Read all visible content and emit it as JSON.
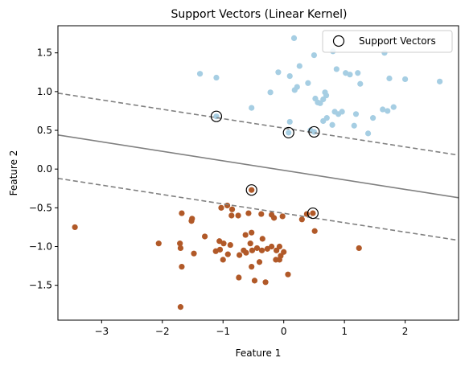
{
  "chart_data": {
    "type": "scatter",
    "title": "Support Vectors (Linear Kernel)",
    "xlabel": "Feature 1",
    "ylabel": "Feature 2",
    "xlim": [
      -3.72,
      2.88
    ],
    "ylim": [
      -1.95,
      1.85
    ],
    "xticks": [
      {
        "value": -3,
        "label": "−3"
      },
      {
        "value": -2,
        "label": "−2"
      },
      {
        "value": -1,
        "label": "−1"
      },
      {
        "value": 0,
        "label": "0"
      },
      {
        "value": 1,
        "label": "1"
      },
      {
        "value": 2,
        "label": "2"
      }
    ],
    "yticks": [
      {
        "value": 1.5,
        "label": "1.5"
      },
      {
        "value": 1.0,
        "label": "1.0"
      },
      {
        "value": 0.5,
        "label": "0.5"
      },
      {
        "value": 0.0,
        "label": "0.0"
      },
      {
        "value": -0.5,
        "label": "−0.5"
      },
      {
        "value": -1.0,
        "label": "−1.0"
      },
      {
        "value": -1.5,
        "label": "−1.5"
      }
    ],
    "grid": false,
    "legend": {
      "position": "top-right",
      "entries": [
        "Support Vectors"
      ]
    },
    "classes": [
      {
        "color": "#a6cee3",
        "points": [
          [
            0.17,
            1.69
          ],
          [
            -1.38,
            1.23
          ],
          [
            -1.11,
            1.18
          ],
          [
            -0.09,
            1.25
          ],
          [
            0.1,
            1.2
          ],
          [
            0.26,
            1.33
          ],
          [
            0.5,
            1.47
          ],
          [
            0.81,
            1.52
          ],
          [
            0.87,
            1.29
          ],
          [
            1.02,
            1.24
          ],
          [
            1.09,
            1.22
          ],
          [
            1.22,
            1.24
          ],
          [
            1.66,
            1.5
          ],
          [
            1.74,
            1.17
          ],
          [
            2.0,
            1.16
          ],
          [
            2.57,
            1.13
          ],
          [
            0.4,
            1.11
          ],
          [
            0.22,
            1.06
          ],
          [
            0.18,
            1.02
          ],
          [
            -0.22,
            0.99
          ],
          [
            0.68,
            0.99
          ],
          [
            1.26,
            1.1
          ],
          [
            0.7,
            0.95
          ],
          [
            0.52,
            0.91
          ],
          [
            0.65,
            0.9
          ],
          [
            0.6,
            0.85
          ],
          [
            0.56,
            0.86
          ],
          [
            -0.53,
            0.79
          ],
          [
            1.81,
            0.8
          ],
          [
            1.63,
            0.77
          ],
          [
            1.71,
            0.75
          ],
          [
            0.84,
            0.74
          ],
          [
            0.96,
            0.74
          ],
          [
            0.9,
            0.71
          ],
          [
            1.19,
            0.71
          ],
          [
            1.47,
            0.66
          ],
          [
            0.71,
            0.66
          ],
          [
            0.65,
            0.62
          ],
          [
            0.1,
            0.61
          ],
          [
            1.16,
            0.56
          ],
          [
            0.8,
            0.57
          ],
          [
            1.39,
            0.46
          ],
          [
            0.44,
            0.5
          ],
          [
            -1.11,
            0.68
          ],
          [
            0.08,
            0.47
          ],
          [
            0.5,
            0.48
          ]
        ]
      },
      {
        "color": "#b15928",
        "points": [
          [
            -0.53,
            -0.27
          ],
          [
            0.48,
            -0.57
          ],
          [
            -0.93,
            -0.47
          ],
          [
            -1.03,
            -0.5
          ],
          [
            -0.85,
            -0.52
          ],
          [
            -1.68,
            -0.57
          ],
          [
            -0.58,
            -0.57
          ],
          [
            -0.75,
            -0.6
          ],
          [
            -0.86,
            -0.6
          ],
          [
            -1.51,
            -0.64
          ],
          [
            -1.52,
            -0.67
          ],
          [
            -0.37,
            -0.58
          ],
          [
            -0.2,
            -0.59
          ],
          [
            -0.16,
            -0.63
          ],
          [
            -0.02,
            -0.61
          ],
          [
            0.3,
            -0.65
          ],
          [
            0.38,
            -0.58
          ],
          [
            -3.44,
            -0.75
          ],
          [
            -0.53,
            -0.82
          ],
          [
            -0.63,
            -0.85
          ],
          [
            0.51,
            -0.8
          ],
          [
            -1.06,
            -0.93
          ],
          [
            -0.35,
            -0.9
          ],
          [
            -1.3,
            -0.87
          ],
          [
            -2.06,
            -0.96
          ],
          [
            -1.71,
            -0.96
          ],
          [
            -1.7,
            -1.02
          ],
          [
            -0.99,
            -0.96
          ],
          [
            -0.88,
            -0.98
          ],
          [
            -0.55,
            -0.96
          ],
          [
            -0.44,
            -1.02
          ],
          [
            -0.2,
            -1.0
          ],
          [
            -0.07,
            -1.0
          ],
          [
            -0.12,
            -1.05
          ],
          [
            -1.48,
            -1.09
          ],
          [
            -1.12,
            -1.06
          ],
          [
            -1.05,
            -1.04
          ],
          [
            -0.92,
            -1.1
          ],
          [
            -0.66,
            -1.05
          ],
          [
            -0.52,
            -1.05
          ],
          [
            -0.36,
            -1.05
          ],
          [
            -0.27,
            -1.03
          ],
          [
            0.0,
            -1.07
          ],
          [
            -0.05,
            -1.12
          ],
          [
            -0.13,
            -1.17
          ],
          [
            -0.07,
            -1.17
          ],
          [
            1.24,
            -1.02
          ],
          [
            -1.0,
            -1.17
          ],
          [
            -0.73,
            -1.11
          ],
          [
            -0.62,
            -1.08
          ],
          [
            -0.4,
            -1.2
          ],
          [
            -1.68,
            -1.26
          ],
          [
            -0.53,
            -1.26
          ],
          [
            0.07,
            -1.36
          ],
          [
            -0.74,
            -1.4
          ],
          [
            -0.48,
            -1.44
          ],
          [
            -0.3,
            -1.46
          ],
          [
            -1.7,
            -1.78
          ]
        ]
      }
    ],
    "support_vectors": [
      [
        -1.11,
        0.68
      ],
      [
        0.08,
        0.47
      ],
      [
        0.5,
        0.48
      ],
      [
        -0.53,
        -0.27
      ],
      [
        0.48,
        -0.57
      ]
    ],
    "lines": [
      {
        "style": "solid",
        "color": "#808080",
        "points": [
          [
            -3.72,
            0.44
          ],
          [
            2.88,
            -0.37
          ]
        ]
      },
      {
        "style": "dashed",
        "color": "#808080",
        "points": [
          [
            -3.72,
            0.98
          ],
          [
            2.88,
            0.18
          ]
        ]
      },
      {
        "style": "dashed",
        "color": "#808080",
        "points": [
          [
            -3.72,
            -0.12
          ],
          [
            2.88,
            -0.92
          ]
        ]
      }
    ]
  }
}
